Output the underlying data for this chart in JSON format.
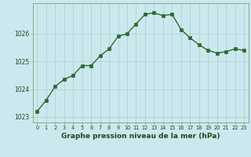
{
  "x": [
    0,
    1,
    2,
    3,
    4,
    5,
    6,
    7,
    8,
    9,
    10,
    11,
    12,
    13,
    14,
    15,
    16,
    17,
    18,
    19,
    20,
    21,
    22,
    23
  ],
  "y": [
    1023.2,
    1023.6,
    1024.1,
    1024.35,
    1024.5,
    1024.85,
    1024.85,
    1025.2,
    1025.45,
    1025.9,
    1026.0,
    1026.35,
    1026.7,
    1026.75,
    1026.65,
    1026.7,
    1026.15,
    1025.85,
    1025.6,
    1025.4,
    1025.3,
    1025.35,
    1025.45,
    1025.4
  ],
  "xlabel": "Graphe pression niveau de la mer (hPa)",
  "ylim": [
    1022.8,
    1027.1
  ],
  "yticks": [
    1023,
    1024,
    1025,
    1026
  ],
  "xticks": [
    0,
    1,
    2,
    3,
    4,
    5,
    6,
    7,
    8,
    9,
    10,
    11,
    12,
    13,
    14,
    15,
    16,
    17,
    18,
    19,
    20,
    21,
    22,
    23
  ],
  "line_color": "#2d6a2d",
  "marker_color": "#2d6a2d",
  "bg_color": "#cce8ef",
  "grid_color": "#aacccc",
  "border_color": "#88aa88",
  "xlabel_color": "#1a4a1a",
  "tick_color": "#1a4a1a"
}
